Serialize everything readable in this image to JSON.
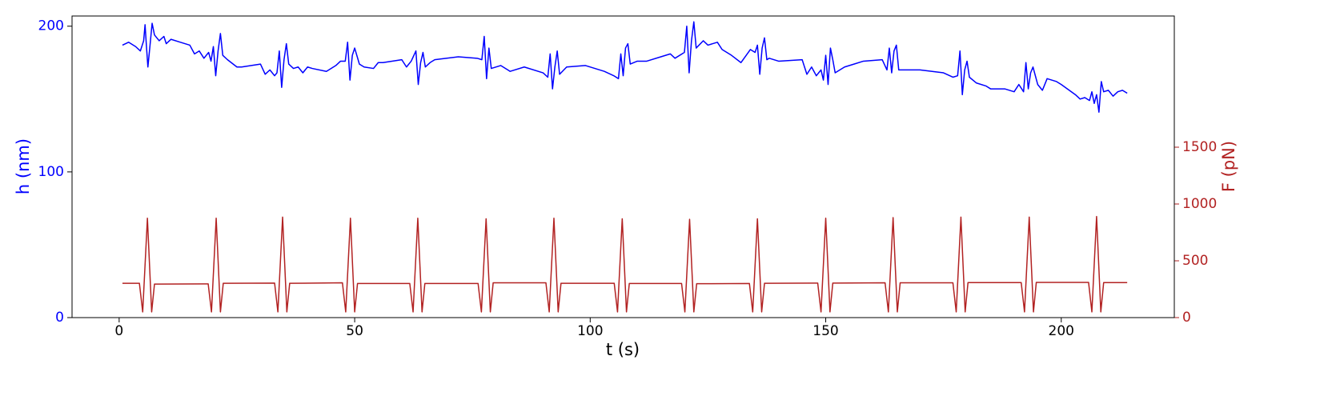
{
  "chart_data": {
    "type": "line",
    "xlabel": "t (s)",
    "ylabel": "h (nm)",
    "y2label": "F (pN)",
    "xlim": [
      -10,
      224
    ],
    "xticks": [
      0,
      50,
      100,
      150,
      200
    ],
    "ylim": [
      0,
      207
    ],
    "yticks": [
      0,
      100,
      200
    ],
    "y2lim": [
      0,
      2655
    ],
    "y2ticks": [
      0,
      500,
      1000,
      1500
    ],
    "series": [
      {
        "color": "#0000ff",
        "axis": "y",
        "x": [
          0.7,
          2,
          3.5,
          4.5,
          5.2,
          5.5,
          5.8,
          6.1,
          6.5,
          7,
          7.5,
          8.5,
          9.5,
          10,
          11,
          13,
          15,
          16,
          17,
          18,
          19,
          19.5,
          20,
          20.5,
          21,
          21.5,
          22,
          23,
          25,
          26,
          30,
          31,
          32,
          33,
          33.5,
          34,
          34.5,
          35,
          35.5,
          36,
          37,
          38,
          39,
          40,
          41,
          44,
          46,
          47,
          48,
          48.5,
          49,
          49.5,
          50,
          51,
          52,
          54,
          55,
          56,
          60,
          61,
          62,
          63,
          63.5,
          64,
          64.5,
          65,
          66,
          67,
          72,
          76,
          77,
          77.5,
          78,
          78.5,
          79,
          81,
          83,
          86,
          90,
          91,
          91.5,
          92,
          92.5,
          93,
          93.5,
          95,
          99,
          103,
          105,
          106,
          106.5,
          107,
          107.5,
          108,
          108.5,
          110,
          112,
          115,
          117,
          118,
          120,
          120.5,
          121,
          121.5,
          122,
          122.5,
          124,
          125,
          127,
          128,
          130,
          132,
          134,
          135,
          135.5,
          136,
          136.5,
          137,
          137.5,
          138,
          140,
          145,
          146,
          147,
          148,
          149,
          149.5,
          150,
          150.5,
          151,
          151.5,
          152,
          154,
          156,
          158,
          162,
          163,
          163.5,
          164,
          164.5,
          165,
          165.5,
          167,
          170,
          175,
          177,
          178,
          178.5,
          179,
          179.5,
          180,
          180.5,
          182,
          184,
          185,
          188,
          190,
          191,
          192,
          192.5,
          193,
          193.5,
          194,
          195,
          196,
          197,
          199,
          200,
          203,
          204,
          205,
          206,
          206.5,
          207,
          207.5,
          208,
          208.5,
          209,
          210,
          211,
          212,
          213,
          214
        ],
        "values": [
          187,
          189,
          186,
          183,
          190,
          201,
          186,
          172,
          185,
          202,
          194,
          190,
          193,
          188,
          191,
          189,
          187,
          181,
          183,
          178,
          182,
          176,
          186,
          166,
          183,
          195,
          180,
          177,
          172,
          172,
          174,
          167,
          170,
          166,
          168,
          183,
          158,
          177,
          188,
          174,
          171,
          172,
          168,
          172,
          171,
          169,
          173,
          176,
          176,
          189,
          163,
          180,
          185,
          174,
          172,
          171,
          175,
          175,
          177,
          172,
          176,
          183,
          160,
          175,
          182,
          172,
          175,
          177,
          179,
          178,
          177,
          193,
          164,
          185,
          171,
          173,
          169,
          172,
          168,
          165,
          181,
          157,
          172,
          183,
          167,
          172,
          173,
          169,
          166,
          164,
          181,
          166,
          185,
          188,
          174,
          176,
          176,
          179,
          181,
          178,
          182,
          200,
          168,
          190,
          203,
          185,
          190,
          187,
          189,
          184,
          180,
          175,
          184,
          182,
          187,
          167,
          185,
          192,
          177,
          178,
          176,
          177,
          167,
          172,
          166,
          170,
          163,
          180,
          160,
          185,
          177,
          168,
          172,
          174,
          176,
          177,
          170,
          185,
          168,
          183,
          187,
          170,
          170,
          170,
          168,
          165,
          166,
          183,
          153,
          170,
          176,
          165,
          161,
          159,
          157,
          157,
          155,
          160,
          155,
          175,
          157,
          168,
          172,
          160,
          156,
          164,
          162,
          160,
          153,
          150,
          151,
          149,
          155,
          147,
          153,
          141,
          162,
          155,
          156,
          152,
          155,
          156,
          154
        ]
      },
      {
        "color": "#b22222",
        "axis": "y2",
        "x": [
          0.7,
          4.3,
          5,
          6,
          6.9,
          7.5,
          18.9,
          19.6,
          20.6,
          21.5,
          22.1,
          33,
          33.7,
          34.7,
          35.6,
          36.2,
          47.4,
          48.1,
          49.1,
          50,
          50.6,
          61.7,
          62.4,
          63.4,
          64.3,
          64.9,
          76.2,
          76.9,
          77.9,
          78.8,
          79.4,
          90.6,
          91.3,
          92.3,
          93.2,
          93.8,
          105.1,
          105.8,
          106.8,
          107.7,
          108.3,
          119.4,
          120.1,
          121.1,
          122,
          122.6,
          133.8,
          134.5,
          135.5,
          136.4,
          137,
          148.3,
          149,
          150,
          150.9,
          151.5,
          162.6,
          163.3,
          164.3,
          165.2,
          165.8,
          177,
          177.7,
          178.7,
          179.6,
          180.2,
          191.5,
          192.2,
          193.2,
          194.1,
          194.7,
          205.8,
          206.5,
          207.5,
          208.4,
          209,
          214
        ],
        "values": [
          302,
          302,
          50,
          875,
          50,
          295,
          297,
          50,
          875,
          50,
          302,
          304,
          50,
          885,
          50,
          302,
          306,
          50,
          875,
          50,
          300,
          300,
          50,
          875,
          50,
          300,
          300,
          50,
          870,
          50,
          306,
          306,
          50,
          875,
          50,
          302,
          302,
          50,
          870,
          50,
          300,
          300,
          50,
          865,
          50,
          298,
          300,
          50,
          870,
          50,
          302,
          304,
          50,
          875,
          50,
          304,
          306,
          50,
          880,
          50,
          306,
          306,
          50,
          885,
          50,
          308,
          308,
          50,
          885,
          50,
          310,
          310,
          50,
          890,
          50,
          308,
          308
        ]
      }
    ]
  }
}
